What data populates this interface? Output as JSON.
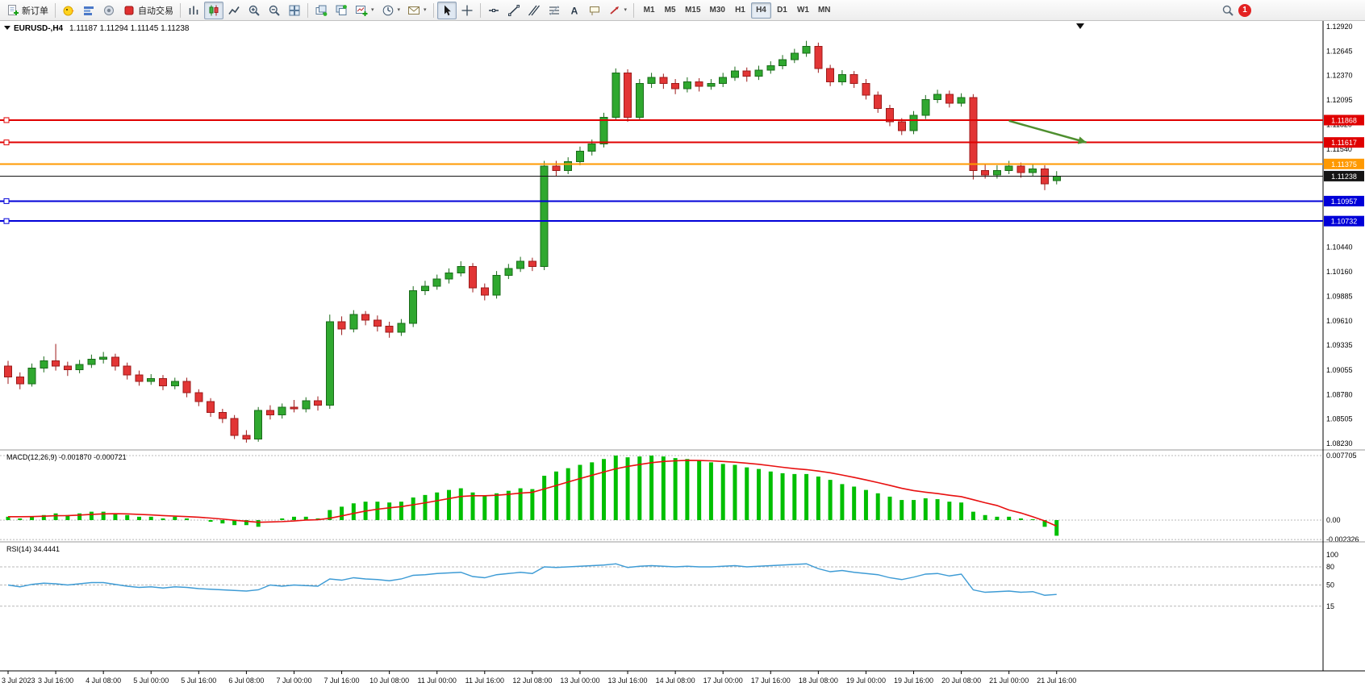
{
  "toolbar": {
    "new_order_label": "新订单",
    "auto_trading_label": "自动交易",
    "timeframes": [
      "M1",
      "M5",
      "M15",
      "M30",
      "H1",
      "H4",
      "D1",
      "W1",
      "MN"
    ],
    "active_timeframe": "H4",
    "notification_count": "1"
  },
  "chart": {
    "header": {
      "symbol_period": "EURUSD-,H4",
      "open": "1.11187",
      "high": "1.11294",
      "low": "1.11145",
      "close": "1.11238"
    },
    "price_axis": {
      "top_price": 1.1292,
      "bottom_price": 1.0823,
      "labels": [
        "1.12920",
        "1.12645",
        "1.12370",
        "1.12095",
        "1.11820",
        "1.11540",
        "1.10440",
        "1.10160",
        "1.09885",
        "1.09610",
        "1.09335",
        "1.09055",
        "1.08780",
        "1.08505",
        "1.08230"
      ]
    },
    "price_tags": [
      {
        "label": "1.11868",
        "price": 1.11868,
        "color": "#e00000",
        "width": 2,
        "handle": true,
        "name": "resistance-line-1"
      },
      {
        "label": "1.11617",
        "price": 1.11617,
        "color": "#e00000",
        "width": 2,
        "handle": true,
        "name": "resistance-line-2"
      },
      {
        "label": "1.11375",
        "price": 1.11375,
        "color": "#ff9900",
        "width": 2,
        "handle": false,
        "name": "pivot-line"
      },
      {
        "label": "1.11238",
        "price": 1.11238,
        "color": "#141414",
        "width": 1,
        "handle": false,
        "name": "current-price-line"
      },
      {
        "label": "1.10957",
        "price": 1.10957,
        "color": "#0000d8",
        "width": 2,
        "handle": true,
        "name": "support-line-1"
      },
      {
        "label": "1.10732",
        "price": 1.10732,
        "color": "#0000d8",
        "width": 2,
        "handle": true,
        "name": "support-line-2"
      }
    ],
    "annotation_arrow": {
      "from_bar": 84,
      "from_price": 1.1186,
      "to_bar": 90.5,
      "to_price": 1.11617,
      "color": "#4e8f2f"
    },
    "time_axis": [
      {
        "bar": 0,
        "label": "3 Jul 2023"
      },
      {
        "bar": 4,
        "label": "3 Jul 16:00"
      },
      {
        "bar": 8,
        "label": "4 Jul 08:00"
      },
      {
        "bar": 12,
        "label": "5 Jul 00:00"
      },
      {
        "bar": 16,
        "label": "5 Jul 16:00"
      },
      {
        "bar": 20,
        "label": "6 Jul 08:00"
      },
      {
        "bar": 24,
        "label": "7 Jul 00:00"
      },
      {
        "bar": 28,
        "label": "7 Jul 16:00"
      },
      {
        "bar": 32,
        "label": "10 Jul 08:00"
      },
      {
        "bar": 36,
        "label": "11 Jul 00:00"
      },
      {
        "bar": 40,
        "label": "11 Jul 16:00"
      },
      {
        "bar": 44,
        "label": "12 Jul 08:00"
      },
      {
        "bar": 48,
        "label": "13 Jul 00:00"
      },
      {
        "bar": 52,
        "label": "13 Jul 16:00"
      },
      {
        "bar": 56,
        "label": "14 Jul 08:00"
      },
      {
        "bar": 60,
        "label": "17 Jul 00:00"
      },
      {
        "bar": 64,
        "label": "17 Jul 16:00"
      },
      {
        "bar": 68,
        "label": "18 Jul 08:00"
      },
      {
        "bar": 72,
        "label": "19 Jul 00:00"
      },
      {
        "bar": 76,
        "label": "19 Jul 16:00"
      },
      {
        "bar": 80,
        "label": "20 Jul 08:00"
      },
      {
        "bar": 84,
        "label": "21 Jul 00:00"
      },
      {
        "bar": 88,
        "label": "21 Jul 16:00"
      }
    ]
  },
  "chart_data": {
    "type": "candlestick",
    "symbol": "EURUSD-",
    "period": "H4",
    "up_color": "#2fa82f",
    "up_border": "#1a6b1a",
    "down_color": "#e23535",
    "down_border": "#9c1a1a",
    "candles": [
      [
        1.091,
        1.0916,
        1.089,
        1.0898
      ],
      [
        1.0898,
        1.0903,
        1.0884,
        1.089
      ],
      [
        1.089,
        1.0913,
        1.0887,
        1.0908
      ],
      [
        1.0908,
        1.0921,
        1.0903,
        1.0916
      ],
      [
        1.0916,
        1.0935,
        1.0905,
        1.091
      ],
      [
        1.091,
        1.0915,
        1.0899,
        1.0906
      ],
      [
        1.0906,
        1.0917,
        1.0902,
        1.0912
      ],
      [
        1.0912,
        1.0923,
        1.0908,
        1.0918
      ],
      [
        1.0918,
        1.0926,
        1.0913,
        1.092
      ],
      [
        1.092,
        1.0924,
        1.0905,
        1.091
      ],
      [
        1.091,
        1.0914,
        1.0895,
        1.09
      ],
      [
        1.09,
        1.0905,
        1.0888,
        1.0893
      ],
      [
        1.0893,
        1.0901,
        1.0889,
        1.0896
      ],
      [
        1.0896,
        1.09,
        1.0883,
        1.0888
      ],
      [
        1.0888,
        1.0897,
        1.0884,
        1.0893
      ],
      [
        1.0893,
        1.0897,
        1.0875,
        1.088
      ],
      [
        1.088,
        1.0884,
        1.0865,
        1.087
      ],
      [
        1.087,
        1.0874,
        1.0853,
        1.0858
      ],
      [
        1.0858,
        1.0862,
        1.0846,
        1.0851
      ],
      [
        1.0851,
        1.0855,
        1.0828,
        1.0832
      ],
      [
        1.0832,
        1.0838,
        1.0824,
        1.0828
      ],
      [
        1.0828,
        1.0864,
        1.0825,
        1.086
      ],
      [
        1.086,
        1.0866,
        1.085,
        1.0855
      ],
      [
        1.0855,
        1.0868,
        1.0851,
        1.0864
      ],
      [
        1.0864,
        1.0872,
        1.0858,
        1.0862
      ],
      [
        1.0862,
        1.0875,
        1.0858,
        1.0871
      ],
      [
        1.0871,
        1.0876,
        1.086,
        1.0866
      ],
      [
        1.0866,
        1.0968,
        1.0862,
        1.096
      ],
      [
        1.096,
        1.0966,
        1.0945,
        1.0952
      ],
      [
        1.0952,
        1.0973,
        1.0948,
        1.0968
      ],
      [
        1.0968,
        1.0972,
        1.0956,
        1.0962
      ],
      [
        1.0962,
        1.0967,
        1.0949,
        1.0955
      ],
      [
        1.0955,
        1.096,
        1.0942,
        1.0948
      ],
      [
        1.0948,
        1.0963,
        1.0944,
        1.0958
      ],
      [
        1.0958,
        1.1,
        1.0954,
        1.0995
      ],
      [
        1.0995,
        1.1006,
        1.099,
        1.1
      ],
      [
        1.1,
        1.1013,
        1.0996,
        1.1008
      ],
      [
        1.1008,
        1.102,
        1.1003,
        1.1015
      ],
      [
        1.1015,
        1.1028,
        1.1011,
        1.1022
      ],
      [
        1.1022,
        1.1026,
        1.0993,
        1.0998
      ],
      [
        1.0998,
        1.1003,
        1.0984,
        1.099
      ],
      [
        1.099,
        1.1017,
        1.0986,
        1.1012
      ],
      [
        1.1012,
        1.1025,
        1.1008,
        1.102
      ],
      [
        1.102,
        1.1033,
        1.1016,
        1.1028
      ],
      [
        1.1028,
        1.1032,
        1.1017,
        1.1022
      ],
      [
        1.1022,
        1.1141,
        1.1018,
        1.1135
      ],
      [
        1.1135,
        1.1141,
        1.1124,
        1.113
      ],
      [
        1.113,
        1.1145,
        1.1126,
        1.114
      ],
      [
        1.114,
        1.1157,
        1.1136,
        1.1152
      ],
      [
        1.1152,
        1.1165,
        1.1147,
        1.116
      ],
      [
        1.116,
        1.1195,
        1.1156,
        1.119
      ],
      [
        1.119,
        1.1245,
        1.1186,
        1.124
      ],
      [
        1.124,
        1.1244,
        1.1185,
        1.119
      ],
      [
        1.119,
        1.1233,
        1.1186,
        1.1228
      ],
      [
        1.1228,
        1.124,
        1.1223,
        1.1235
      ],
      [
        1.1235,
        1.1239,
        1.1222,
        1.1228
      ],
      [
        1.1228,
        1.1233,
        1.1216,
        1.1222
      ],
      [
        1.1222,
        1.1235,
        1.1218,
        1.123
      ],
      [
        1.123,
        1.1234,
        1.1219,
        1.1225
      ],
      [
        1.1225,
        1.1233,
        1.1221,
        1.1228
      ],
      [
        1.1228,
        1.124,
        1.1224,
        1.1235
      ],
      [
        1.1235,
        1.1247,
        1.1231,
        1.1242
      ],
      [
        1.1242,
        1.1246,
        1.123,
        1.1236
      ],
      [
        1.1236,
        1.1248,
        1.1232,
        1.1243
      ],
      [
        1.1243,
        1.1253,
        1.1239,
        1.1248
      ],
      [
        1.1248,
        1.126,
        1.1244,
        1.1255
      ],
      [
        1.1255,
        1.1267,
        1.1251,
        1.1262
      ],
      [
        1.1262,
        1.1276,
        1.1258,
        1.127
      ],
      [
        1.127,
        1.1274,
        1.124,
        1.1245
      ],
      [
        1.1245,
        1.1249,
        1.1225,
        1.123
      ],
      [
        1.123,
        1.1243,
        1.1226,
        1.1238
      ],
      [
        1.1238,
        1.1242,
        1.1223,
        1.1228
      ],
      [
        1.1228,
        1.1233,
        1.121,
        1.1215
      ],
      [
        1.1215,
        1.1219,
        1.1195,
        1.12
      ],
      [
        1.12,
        1.1204,
        1.118,
        1.1185
      ],
      [
        1.1185,
        1.1189,
        1.117,
        1.1175
      ],
      [
        1.1175,
        1.1197,
        1.1171,
        1.1192
      ],
      [
        1.1192,
        1.1215,
        1.1188,
        1.121
      ],
      [
        1.121,
        1.1221,
        1.1206,
        1.1216
      ],
      [
        1.1216,
        1.122,
        1.1201,
        1.1206
      ],
      [
        1.1206,
        1.1217,
        1.1202,
        1.1212
      ],
      [
        1.1212,
        1.1216,
        1.112,
        1.113
      ],
      [
        1.113,
        1.1138,
        1.1121,
        1.1125
      ],
      [
        1.1125,
        1.1136,
        1.1121,
        1.113
      ],
      [
        1.113,
        1.1141,
        1.1126,
        1.1135
      ],
      [
        1.1135,
        1.1139,
        1.1122,
        1.1128
      ],
      [
        1.1128,
        1.1138,
        1.1124,
        1.1132
      ],
      [
        1.1132,
        1.1136,
        1.1108,
        1.1115
      ],
      [
        1.11187,
        1.11294,
        1.11145,
        1.11238
      ]
    ],
    "indicators": [
      {
        "name": "MACD",
        "label": "MACD(12,26,9) -0.001870 -0.000721",
        "params": "12,26,9",
        "value_main": -0.00187,
        "value_signal": -0.000721,
        "histogram_color": "#00bf00",
        "signal_color": "#e81010",
        "axis_labels": [
          "0.007705",
          "0.00",
          "-0.002326"
        ],
        "axis_values": [
          0.007705,
          0,
          -0.002326
        ],
        "histogram": [
          0.0004,
          0.0002,
          0.0004,
          0.0006,
          0.0008,
          0.0006,
          0.0008,
          0.001,
          0.001,
          0.0008,
          0.0006,
          0.0004,
          0.0004,
          0.0002,
          0.0004,
          0.0002,
          0.0,
          -0.0002,
          -0.0004,
          -0.0006,
          -0.0006,
          -0.0008,
          0.0,
          0.0002,
          0.0004,
          0.0004,
          0.0002,
          0.0012,
          0.0016,
          0.002,
          0.0022,
          0.0022,
          0.0021,
          0.0022,
          0.0027,
          0.003,
          0.0033,
          0.0036,
          0.0038,
          0.0033,
          0.0029,
          0.0032,
          0.0035,
          0.0038,
          0.0037,
          0.0053,
          0.0058,
          0.0062,
          0.0066,
          0.0069,
          0.0073,
          0.0077,
          0.0075,
          0.0076,
          0.0077,
          0.0076,
          0.0074,
          0.0073,
          0.0071,
          0.0069,
          0.0067,
          0.0066,
          0.0063,
          0.0061,
          0.0058,
          0.0056,
          0.0055,
          0.0055,
          0.0052,
          0.0048,
          0.0043,
          0.004,
          0.0036,
          0.0032,
          0.0028,
          0.0024,
          0.0024,
          0.0026,
          0.0025,
          0.0022,
          0.0021,
          0.001,
          0.0006,
          0.0004,
          0.0004,
          0.0002,
          0.0001,
          -0.0008,
          -0.00187
        ],
        "signal": [
          0.0004,
          0.0004,
          0.00042,
          0.00046,
          0.00052,
          0.00054,
          0.0006,
          0.00068,
          0.00074,
          0.00076,
          0.00074,
          0.00068,
          0.00062,
          0.00054,
          0.00048,
          0.00042,
          0.00034,
          0.00024,
          0.00012,
          -2e-05,
          -0.00014,
          -0.00026,
          -0.00022,
          -0.00018,
          -0.0001,
          0.0,
          4e-05,
          0.00022,
          0.0005,
          0.0008,
          0.00108,
          0.0013,
          0.00146,
          0.00161,
          0.00183,
          0.00206,
          0.00231,
          0.00257,
          0.00282,
          0.00291,
          0.00291,
          0.00297,
          0.00308,
          0.00322,
          0.00332,
          0.00372,
          0.00413,
          0.00455,
          0.00496,
          0.00535,
          0.00574,
          0.00613,
          0.00641,
          0.00664,
          0.00686,
          0.007,
          0.00708,
          0.00713,
          0.00712,
          0.00708,
          0.007,
          0.00692,
          0.0068,
          0.00666,
          0.00649,
          0.00631,
          0.00615,
          0.00603,
          0.00586,
          0.00565,
          0.00538,
          0.0051,
          0.0048,
          0.00448,
          0.00415,
          0.0038,
          0.00352,
          0.00333,
          0.00317,
          0.00297,
          0.0028,
          0.00244,
          0.00207,
          0.00174,
          0.0012,
          0.00085,
          0.0004,
          -0.0001,
          -0.00072
        ]
      },
      {
        "name": "RSI",
        "label": "RSI(14) 34.4441",
        "period": 14,
        "value": 34.4441,
        "line_color": "#3d9bd5",
        "levels": [
          80,
          50,
          15
        ],
        "axis_labels": [
          "100",
          "80",
          "50",
          "15"
        ],
        "axis_values": [
          100,
          80,
          50,
          15
        ],
        "values": [
          50,
          47,
          51,
          53,
          52,
          50,
          52,
          54,
          54,
          51,
          48,
          46,
          47,
          45,
          47,
          46,
          44,
          43,
          42,
          41,
          40,
          42,
          50,
          48,
          50,
          49,
          48,
          60,
          58,
          62,
          60,
          59,
          57,
          60,
          66,
          67,
          69,
          70,
          71,
          64,
          62,
          67,
          69,
          71,
          69,
          80,
          79,
          80,
          81,
          82,
          83,
          85,
          79,
          81,
          82,
          81,
          80,
          81,
          80,
          80,
          81,
          82,
          80,
          81,
          82,
          83,
          84,
          85,
          77,
          72,
          74,
          71,
          69,
          67,
          62,
          59,
          63,
          68,
          69,
          65,
          68,
          42,
          38,
          39,
          40,
          38,
          39,
          33,
          34.44
        ]
      }
    ]
  }
}
